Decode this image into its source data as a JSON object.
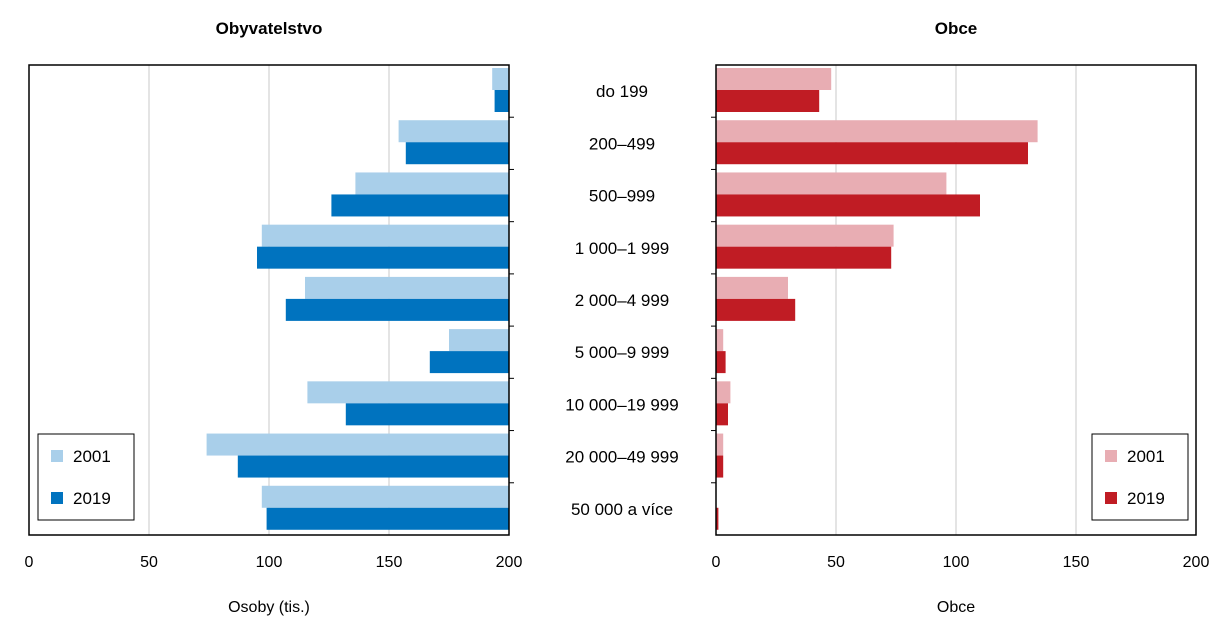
{
  "chart_data": [
    {
      "type": "bar",
      "orientation": "horizontal",
      "title": "Obyvatelstvo",
      "xlabel": "Osoby (tis.)",
      "ylabel": "",
      "xlim": [
        200,
        0
      ],
      "x_reversed": true,
      "xticks": [
        "200",
        "150",
        "100",
        "50",
        "0"
      ],
      "grid": "vertical",
      "legend_position": "bottom-left",
      "categories": [
        "do 199",
        "200–499",
        "500–999",
        "1 000–1 999",
        "2 000–4 999",
        "5 000–9 999",
        "10 000–19 999",
        "20 000–49 999",
        "50 000 a více"
      ],
      "series": [
        {
          "name": "2001",
          "color": "#a9cfea",
          "values": [
            7,
            46,
            64,
            103,
            85,
            25,
            84,
            126,
            103
          ]
        },
        {
          "name": "2019",
          "color": "#0073bf",
          "values": [
            6,
            43,
            74,
            105,
            93,
            33,
            68,
            113,
            101
          ]
        }
      ]
    },
    {
      "type": "bar",
      "orientation": "horizontal",
      "title": "Obce",
      "xlabel": "Obce",
      "ylabel": "",
      "xlim": [
        0,
        200
      ],
      "xticks": [
        "0",
        "50",
        "100",
        "150",
        "200"
      ],
      "grid": "vertical",
      "legend_position": "bottom-right",
      "categories": [
        "do 199",
        "200–499",
        "500–999",
        "1 000–1 999",
        "2 000–4 999",
        "5 000–9 999",
        "10 000–19 999",
        "20 000–49 999",
        "50 000 a více"
      ],
      "series": [
        {
          "name": "2001",
          "color": "#e8adb3",
          "values": [
            48,
            134,
            96,
            74,
            30,
            3,
            6,
            3,
            0
          ]
        },
        {
          "name": "2019",
          "color": "#c01c24",
          "values": [
            43,
            130,
            110,
            73,
            33,
            4,
            5,
            3,
            1
          ]
        }
      ]
    }
  ]
}
